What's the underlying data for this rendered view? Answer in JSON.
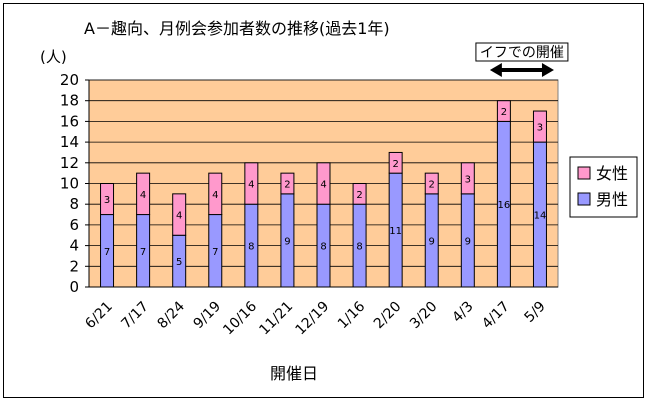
{
  "chart_data": {
    "type": "bar",
    "stacked": true,
    "title": "A－趣向、月例会参加者数の推移(過去1年)",
    "ylabel": "(人)",
    "xlabel": "開催日",
    "ylim": [
      0,
      20
    ],
    "yticks": [
      0,
      2,
      4,
      6,
      8,
      10,
      12,
      14,
      16,
      18,
      20
    ],
    "grid": true,
    "legend_position": "right",
    "categories": [
      "6/21",
      "7/17",
      "8/24",
      "9/19",
      "10/16",
      "11/21",
      "12/19",
      "1/16",
      "2/20",
      "3/20",
      "4/3",
      "4/17",
      "5/9"
    ],
    "series": [
      {
        "name": "男性",
        "color": "#9999ff",
        "values": [
          7,
          7,
          5,
          7,
          8,
          9,
          8,
          8,
          11,
          9,
          9,
          16,
          14
        ]
      },
      {
        "name": "女性",
        "color": "#ff99cc",
        "values": [
          3,
          4,
          4,
          4,
          4,
          2,
          4,
          2,
          2,
          2,
          3,
          2,
          3
        ]
      }
    ],
    "annotation": {
      "text": "イフでの開催",
      "from_category": "4/17",
      "to_category": "5/9"
    },
    "plot_background": "#ffcc99"
  }
}
